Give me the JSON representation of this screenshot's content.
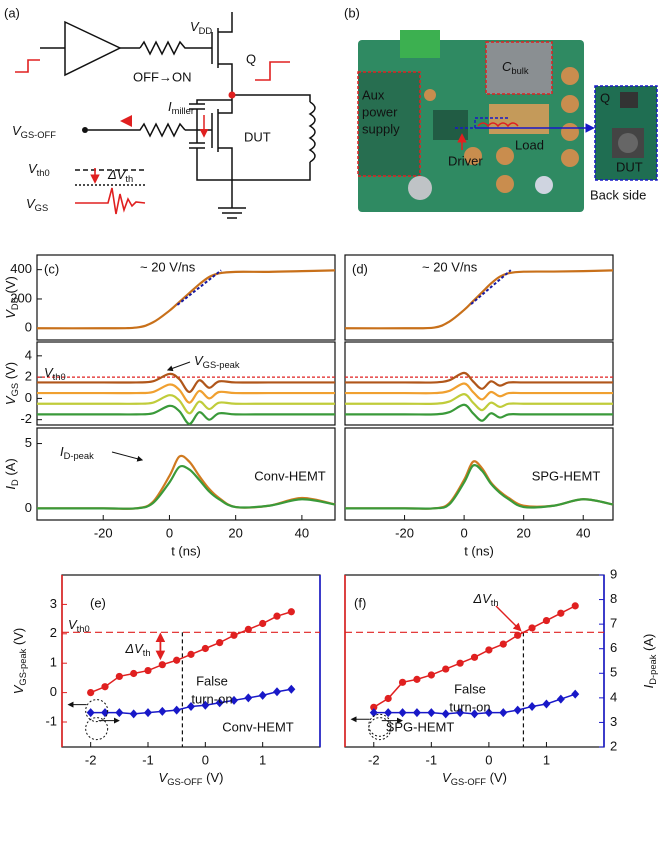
{
  "panel_labels": [
    "(a)",
    "(b)",
    "(c)",
    "(d)",
    "(e)",
    "(f)"
  ],
  "diagram": {
    "vdd": [
      "V",
      {
        "sub": "DD"
      }
    ],
    "q": "Q",
    "off_on": "OFF→ON",
    "imiller": [
      "I",
      {
        "sub": "miller"
      }
    ],
    "vgs_off": [
      "V",
      {
        "sub": "GS-OFF"
      }
    ],
    "dut": "DUT",
    "vth0": [
      "V",
      {
        "sub": "th0"
      }
    ],
    "dvth": [
      "ΔV",
      {
        "sub": "th"
      }
    ],
    "vgs": [
      "V",
      {
        "sub": "GS"
      }
    ]
  },
  "photo": {
    "cbulk": [
      "C",
      {
        "sub": "bulk"
      }
    ],
    "aux": [
      "Aux",
      "power",
      "supply"
    ],
    "load": "Load",
    "driver": "Driver",
    "q": "Q",
    "dut": "DUT",
    "back": "Back side"
  },
  "chart_data": [
    {
      "type": "line",
      "ylabel": [
        "V",
        {
          "sub": "DS"
        },
        " (V)"
      ],
      "x": [
        -40,
        -20,
        -10,
        -5,
        0,
        3,
        6,
        9,
        12,
        15,
        20,
        30,
        40,
        50
      ],
      "xlim": [
        -40,
        50
      ],
      "ylim": [
        -80,
        500
      ],
      "yticks": [
        0,
        200,
        400
      ],
      "annotations": {
        "slope": "~ 20 V/ns"
      },
      "series": [
        {
          "color": "#c8701a",
          "values": [
            0,
            0,
            5,
            40,
            120,
            180,
            240,
            300,
            350,
            375,
            385,
            385,
            390,
            395
          ]
        }
      ]
    },
    {
      "type": "line",
      "ylabel": [
        "V",
        {
          "sub": "GS"
        },
        " (V)"
      ],
      "x": [
        -40,
        -20,
        -10,
        -5,
        0,
        3,
        6,
        9,
        12,
        15,
        20,
        30,
        40,
        50
      ],
      "xlim": [
        -40,
        50
      ],
      "ylim": [
        -2.5,
        5.3
      ],
      "yticks": [
        -2,
        0,
        2,
        4
      ],
      "hline": 2,
      "annotations": {
        "vth0": [
          "V",
          {
            "sub": "th0"
          }
        ],
        "peak": [
          "V",
          {
            "sub": "GS-peak"
          }
        ]
      },
      "series": [
        {
          "color": "#b0561a",
          "values": [
            1.5,
            1.5,
            1.5,
            1.6,
            2.3,
            1.8,
            0.6,
            1.7,
            1.0,
            1.6,
            1.5,
            1.5,
            1.5,
            1.5
          ]
        },
        {
          "color": "#f0a030",
          "values": [
            0.5,
            0.5,
            0.5,
            0.6,
            1.3,
            0.8,
            -0.4,
            0.7,
            0,
            0.6,
            0.5,
            0.5,
            0.5,
            0.5
          ]
        },
        {
          "color": "#c0cc3a",
          "values": [
            -0.5,
            -0.5,
            -0.5,
            -0.4,
            0.3,
            -0.2,
            -1.4,
            -0.3,
            -1.0,
            -0.4,
            -0.5,
            -0.5,
            -0.5,
            -0.5
          ]
        },
        {
          "color": "#3a9a3a",
          "values": [
            -1.5,
            -1.5,
            -1.5,
            -1.4,
            -0.7,
            -1.2,
            -2.4,
            -1.3,
            -2.0,
            -1.4,
            -1.5,
            -1.5,
            -1.5,
            -1.5
          ]
        }
      ]
    },
    {
      "type": "line",
      "ylabel": [
        "I",
        {
          "sub": "D"
        },
        " (A)"
      ],
      "xlabel": "t (ns)",
      "x": [
        -40,
        -20,
        -10,
        -5,
        0,
        3,
        6,
        9,
        12,
        15,
        20,
        30,
        40,
        50
      ],
      "xlim": [
        -40,
        50
      ],
      "ylim": [
        -0.9,
        6.2
      ],
      "yticks": [
        0,
        5
      ],
      "xticks": [
        -20,
        0,
        20,
        40
      ],
      "annotations": {
        "id_peak": [
          "I",
          {
            "sub": "D-peak"
          }
        ],
        "label": "Conv-HEMT"
      },
      "series": [
        {
          "color": "#d07a20",
          "values": [
            0,
            0,
            0,
            0.5,
            2.5,
            4,
            3.6,
            2.5,
            1.5,
            0.8,
            0.1,
            0.2,
            0.8,
            0.3
          ]
        },
        {
          "color": "#3a9a3a",
          "values": [
            0,
            0,
            0,
            0.4,
            2,
            3.2,
            3,
            2.2,
            1.3,
            0.7,
            0.1,
            0.2,
            0.7,
            0.3
          ]
        }
      ]
    },
    {
      "type": "line",
      "x": [
        -40,
        -20,
        -10,
        -5,
        0,
        3,
        6,
        9,
        12,
        15,
        20,
        30,
        40,
        50
      ],
      "xlim": [
        -40,
        50
      ],
      "ylim": [
        -80,
        500
      ],
      "annotations": {
        "slope": "~ 20 V/ns"
      },
      "series": [
        {
          "color": "#c8701a",
          "values": [
            0,
            0,
            5,
            45,
            125,
            185,
            245,
            305,
            352,
            376,
            386,
            387,
            390,
            395
          ]
        }
      ]
    },
    {
      "type": "line",
      "x": [
        -40,
        -20,
        -10,
        -5,
        0,
        3,
        6,
        9,
        12,
        15,
        20,
        30,
        40,
        50
      ],
      "xlim": [
        -40,
        50
      ],
      "ylim": [
        -2.5,
        5.3
      ],
      "hline": 2,
      "series": [
        {
          "color": "#b0561a",
          "values": [
            1.5,
            1.5,
            1.5,
            1.7,
            2.4,
            1.6,
            0.9,
            1.6,
            1.2,
            1.5,
            1.5,
            1.5,
            1.5,
            1.5
          ]
        },
        {
          "color": "#f0a030",
          "values": [
            0.5,
            0.5,
            0.5,
            0.7,
            1.4,
            0.6,
            -0.1,
            0.6,
            0.2,
            0.5,
            0.5,
            0.5,
            0.5,
            0.5
          ]
        },
        {
          "color": "#c0cc3a",
          "values": [
            -0.5,
            -0.5,
            -0.5,
            -0.3,
            0.4,
            -0.4,
            -1.1,
            -0.4,
            -0.8,
            -0.5,
            -0.5,
            -0.5,
            -0.5,
            -0.5
          ]
        },
        {
          "color": "#3a9a3a",
          "values": [
            -1.5,
            -1.5,
            -1.5,
            -1.3,
            -0.6,
            -1.4,
            -2.1,
            -1.4,
            -1.8,
            -1.5,
            -1.5,
            -1.5,
            -1.5,
            -1.5
          ]
        }
      ]
    },
    {
      "type": "line",
      "xlabel": "t (ns)",
      "x": [
        -40,
        -20,
        -10,
        -5,
        0,
        3,
        6,
        9,
        12,
        15,
        20,
        30,
        40,
        50
      ],
      "xlim": [
        -40,
        50
      ],
      "ylim": [
        -0.9,
        6.2
      ],
      "xticks": [
        -20,
        0,
        20,
        40
      ],
      "annotations": {
        "label": "SPG-HEMT"
      },
      "series": [
        {
          "color": "#d07a20",
          "values": [
            0,
            0,
            0,
            0.4,
            2.2,
            3.6,
            3.1,
            2.0,
            1.3,
            0.8,
            0.2,
            0.2,
            0.7,
            0.3
          ]
        },
        {
          "color": "#3a9a3a",
          "values": [
            0,
            0,
            0,
            0.3,
            2.0,
            3.3,
            2.9,
            1.9,
            1.2,
            0.7,
            0.1,
            0.2,
            0.7,
            0.3
          ]
        }
      ]
    },
    {
      "type": "dual",
      "ylabel": [
        "V",
        {
          "sub": "GS-peak"
        },
        " (V)"
      ],
      "xlabel": [
        "V",
        {
          "sub": "GS-OFF"
        },
        " (V)"
      ],
      "x": [
        -2,
        -1.75,
        -1.5,
        -1.25,
        -1,
        -0.75,
        -0.5,
        -0.25,
        0,
        0.25,
        0.5,
        0.75,
        1,
        1.25,
        1.5
      ],
      "xlim": [
        -2.5,
        2
      ],
      "xticks": [
        -2,
        -1,
        0,
        1
      ],
      "ylim": [
        -1.85,
        4
      ],
      "yticks": [
        -1,
        0,
        1,
        2,
        3
      ],
      "y2lim": [
        2,
        9
      ],
      "hline": 2.05,
      "vline": -0.4,
      "annotations": {
        "vth0": [
          "V",
          {
            "sub": "th0"
          }
        ],
        "dvth": [
          "ΔV",
          {
            "sub": "th"
          }
        ],
        "false_turn_on": [
          "False",
          "turn-on"
        ],
        "label": "Conv-HEMT"
      },
      "series": [
        {
          "color": "#e02020",
          "marker": "circle",
          "values": [
            0,
            0.2,
            0.55,
            0.65,
            0.75,
            0.95,
            1.1,
            1.3,
            1.5,
            1.7,
            1.95,
            2.15,
            2.35,
            2.6,
            2.75
          ]
        },
        {
          "color": "#1818c8",
          "marker": "diamond",
          "axis": "y2",
          "values": [
            3.4,
            3.4,
            3.4,
            3.35,
            3.4,
            3.45,
            3.5,
            3.65,
            3.7,
            3.8,
            3.9,
            4.0,
            4.1,
            4.25,
            4.35
          ]
        }
      ]
    },
    {
      "type": "dual",
      "xlabel": [
        "V",
        {
          "sub": "GS-OFF"
        },
        " (V)"
      ],
      "y2label": [
        "I",
        {
          "sub": "D-peak"
        },
        " (A)"
      ],
      "x": [
        -2,
        -1.75,
        -1.5,
        -1.25,
        -1,
        -0.75,
        -0.5,
        -0.25,
        0,
        0.25,
        0.5,
        0.75,
        1,
        1.25,
        1.5
      ],
      "xlim": [
        -2.5,
        2
      ],
      "xticks": [
        -2,
        -1,
        0,
        1
      ],
      "ylim": [
        -1.85,
        4
      ],
      "y2lim": [
        2,
        9
      ],
      "y2ticks": [
        2,
        3,
        4,
        5,
        6,
        7,
        8,
        9
      ],
      "hline": 2.05,
      "vline": 0.6,
      "annotations": {
        "dvth": [
          "ΔV",
          {
            "sub": "th"
          }
        ],
        "false_turn_on": [
          "False",
          "turn-on"
        ],
        "label": "SPG-HEMT"
      },
      "series": [
        {
          "color": "#e02020",
          "marker": "circle",
          "values": [
            -0.5,
            -0.2,
            0.35,
            0.45,
            0.6,
            0.8,
            1.0,
            1.2,
            1.45,
            1.65,
            1.95,
            2.2,
            2.45,
            2.7,
            2.95
          ]
        },
        {
          "color": "#1818c8",
          "marker": "diamond",
          "axis": "y2",
          "values": [
            3.4,
            3.4,
            3.4,
            3.4,
            3.4,
            3.35,
            3.4,
            3.35,
            3.4,
            3.4,
            3.5,
            3.65,
            3.75,
            3.95,
            4.15
          ]
        }
      ]
    }
  ]
}
